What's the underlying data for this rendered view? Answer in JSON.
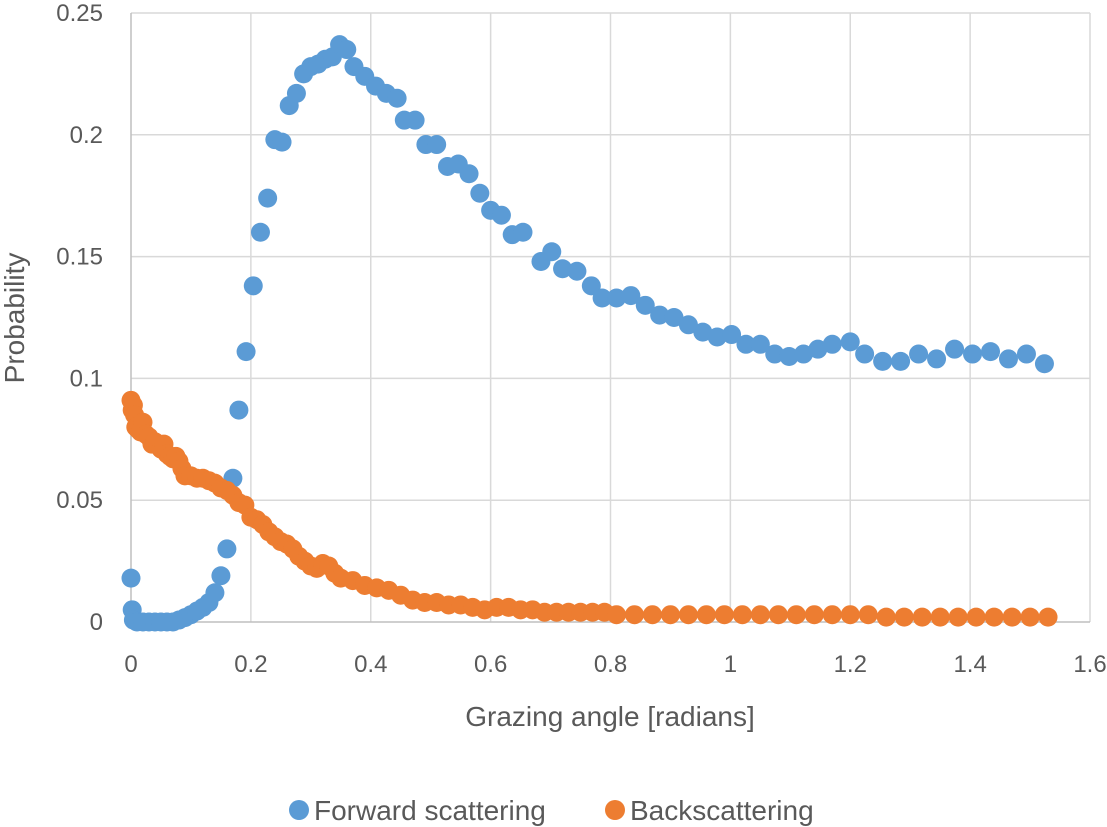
{
  "chart_data": {
    "type": "scatter",
    "title": "",
    "xlabel": "Grazing angle [radians]",
    "ylabel": "Probability",
    "xlim": [
      0,
      1.6
    ],
    "ylim": [
      0,
      0.25
    ],
    "x_ticks": [
      0,
      0.2,
      0.4,
      0.6,
      0.8,
      1,
      1.2,
      1.4,
      1.6
    ],
    "x_tick_labels": [
      "0",
      "0.2",
      "0.4",
      "0.6",
      "0.8",
      "1",
      "1.2",
      "1.4",
      "1.6"
    ],
    "y_ticks": [
      0,
      0.05,
      0.1,
      0.15,
      0.2,
      0.25
    ],
    "y_tick_labels": [
      "0",
      "0.05",
      "0.1",
      "0.15",
      "0.2",
      "0.25"
    ],
    "grid": true,
    "legend_position": "bottom",
    "series": [
      {
        "name": "Forward scattering",
        "color": "#5b9bd5",
        "points": [
          [
            0.0,
            0.018
          ],
          [
            0.002,
            0.005
          ],
          [
            0.004,
            0.0008
          ],
          [
            0.01,
            0.0
          ],
          [
            0.02,
            0.0
          ],
          [
            0.03,
            0.0
          ],
          [
            0.04,
            0.0
          ],
          [
            0.05,
            0.0
          ],
          [
            0.06,
            0.0
          ],
          [
            0.07,
            0.0
          ],
          [
            0.08,
            0.0008
          ],
          [
            0.09,
            0.0018
          ],
          [
            0.1,
            0.003
          ],
          [
            0.11,
            0.0045
          ],
          [
            0.12,
            0.006
          ],
          [
            0.13,
            0.008
          ],
          [
            0.14,
            0.012
          ],
          [
            0.15,
            0.019
          ],
          [
            0.16,
            0.03
          ],
          [
            0.17,
            0.059
          ],
          [
            0.18,
            0.087
          ],
          [
            0.192,
            0.111
          ],
          [
            0.204,
            0.138
          ],
          [
            0.216,
            0.16
          ],
          [
            0.228,
            0.174
          ],
          [
            0.24,
            0.198
          ],
          [
            0.252,
            0.197
          ],
          [
            0.264,
            0.212
          ],
          [
            0.276,
            0.217
          ],
          [
            0.288,
            0.225
          ],
          [
            0.3,
            0.228
          ],
          [
            0.312,
            0.229
          ],
          [
            0.324,
            0.231
          ],
          [
            0.336,
            0.232
          ],
          [
            0.348,
            0.237
          ],
          [
            0.36,
            0.235
          ],
          [
            0.372,
            0.228
          ],
          [
            0.39,
            0.224
          ],
          [
            0.408,
            0.22
          ],
          [
            0.426,
            0.217
          ],
          [
            0.444,
            0.215
          ],
          [
            0.456,
            0.206
          ],
          [
            0.474,
            0.206
          ],
          [
            0.492,
            0.196
          ],
          [
            0.51,
            0.196
          ],
          [
            0.528,
            0.187
          ],
          [
            0.546,
            0.188
          ],
          [
            0.564,
            0.184
          ],
          [
            0.582,
            0.176
          ],
          [
            0.6,
            0.169
          ],
          [
            0.618,
            0.167
          ],
          [
            0.636,
            0.159
          ],
          [
            0.654,
            0.16
          ],
          [
            0.684,
            0.148
          ],
          [
            0.702,
            0.152
          ],
          [
            0.72,
            0.145
          ],
          [
            0.744,
            0.144
          ],
          [
            0.768,
            0.138
          ],
          [
            0.786,
            0.133
          ],
          [
            0.81,
            0.133
          ],
          [
            0.834,
            0.134
          ],
          [
            0.858,
            0.13
          ],
          [
            0.882,
            0.126
          ],
          [
            0.906,
            0.125
          ],
          [
            0.93,
            0.122
          ],
          [
            0.954,
            0.119
          ],
          [
            0.978,
            0.117
          ],
          [
            1.002,
            0.118
          ],
          [
            1.026,
            0.114
          ],
          [
            1.05,
            0.114
          ],
          [
            1.074,
            0.11
          ],
          [
            1.098,
            0.109
          ],
          [
            1.122,
            0.11
          ],
          [
            1.146,
            0.112
          ],
          [
            1.17,
            0.114
          ],
          [
            1.2,
            0.115
          ],
          [
            1.224,
            0.11
          ],
          [
            1.254,
            0.107
          ],
          [
            1.284,
            0.107
          ],
          [
            1.314,
            0.11
          ],
          [
            1.344,
            0.108
          ],
          [
            1.374,
            0.112
          ],
          [
            1.404,
            0.11
          ],
          [
            1.434,
            0.111
          ],
          [
            1.464,
            0.108
          ],
          [
            1.494,
            0.11
          ],
          [
            1.524,
            0.106
          ]
        ]
      },
      {
        "name": "Backscattering",
        "color": "#ed7d31",
        "points": [
          [
            0.0,
            0.091
          ],
          [
            0.002,
            0.087
          ],
          [
            0.004,
            0.089
          ],
          [
            0.006,
            0.085
          ],
          [
            0.008,
            0.08
          ],
          [
            0.012,
            0.079
          ],
          [
            0.016,
            0.078
          ],
          [
            0.02,
            0.082
          ],
          [
            0.025,
            0.077
          ],
          [
            0.03,
            0.076
          ],
          [
            0.035,
            0.073
          ],
          [
            0.04,
            0.074
          ],
          [
            0.045,
            0.073
          ],
          [
            0.05,
            0.071
          ],
          [
            0.055,
            0.073
          ],
          [
            0.06,
            0.069
          ],
          [
            0.065,
            0.068
          ],
          [
            0.07,
            0.067
          ],
          [
            0.075,
            0.068
          ],
          [
            0.08,
            0.066
          ],
          [
            0.085,
            0.063
          ],
          [
            0.09,
            0.06
          ],
          [
            0.1,
            0.06
          ],
          [
            0.11,
            0.059
          ],
          [
            0.12,
            0.059
          ],
          [
            0.13,
            0.058
          ],
          [
            0.14,
            0.057
          ],
          [
            0.15,
            0.055
          ],
          [
            0.16,
            0.054
          ],
          [
            0.17,
            0.052
          ],
          [
            0.18,
            0.049
          ],
          [
            0.19,
            0.048
          ],
          [
            0.2,
            0.043
          ],
          [
            0.21,
            0.042
          ],
          [
            0.22,
            0.04
          ],
          [
            0.23,
            0.037
          ],
          [
            0.24,
            0.035
          ],
          [
            0.25,
            0.033
          ],
          [
            0.26,
            0.032
          ],
          [
            0.27,
            0.03
          ],
          [
            0.28,
            0.027
          ],
          [
            0.29,
            0.025
          ],
          [
            0.3,
            0.023
          ],
          [
            0.31,
            0.022
          ],
          [
            0.32,
            0.024
          ],
          [
            0.33,
            0.023
          ],
          [
            0.34,
            0.02
          ],
          [
            0.35,
            0.018
          ],
          [
            0.37,
            0.017
          ],
          [
            0.39,
            0.015
          ],
          [
            0.41,
            0.014
          ],
          [
            0.43,
            0.013
          ],
          [
            0.45,
            0.011
          ],
          [
            0.47,
            0.009
          ],
          [
            0.49,
            0.008
          ],
          [
            0.51,
            0.008
          ],
          [
            0.53,
            0.007
          ],
          [
            0.55,
            0.007
          ],
          [
            0.57,
            0.006
          ],
          [
            0.59,
            0.005
          ],
          [
            0.61,
            0.006
          ],
          [
            0.63,
            0.006
          ],
          [
            0.65,
            0.005
          ],
          [
            0.67,
            0.005
          ],
          [
            0.69,
            0.004
          ],
          [
            0.71,
            0.004
          ],
          [
            0.73,
            0.004
          ],
          [
            0.75,
            0.004
          ],
          [
            0.77,
            0.004
          ],
          [
            0.79,
            0.004
          ],
          [
            0.81,
            0.003
          ],
          [
            0.84,
            0.003
          ],
          [
            0.87,
            0.003
          ],
          [
            0.9,
            0.003
          ],
          [
            0.93,
            0.003
          ],
          [
            0.96,
            0.003
          ],
          [
            0.99,
            0.003
          ],
          [
            1.02,
            0.003
          ],
          [
            1.05,
            0.003
          ],
          [
            1.08,
            0.003
          ],
          [
            1.11,
            0.003
          ],
          [
            1.14,
            0.003
          ],
          [
            1.17,
            0.003
          ],
          [
            1.2,
            0.003
          ],
          [
            1.23,
            0.003
          ],
          [
            1.26,
            0.002
          ],
          [
            1.29,
            0.002
          ],
          [
            1.32,
            0.002
          ],
          [
            1.35,
            0.002
          ],
          [
            1.38,
            0.002
          ],
          [
            1.41,
            0.002
          ],
          [
            1.44,
            0.002
          ],
          [
            1.47,
            0.002
          ],
          [
            1.5,
            0.002
          ],
          [
            1.53,
            0.002
          ]
        ]
      }
    ]
  }
}
